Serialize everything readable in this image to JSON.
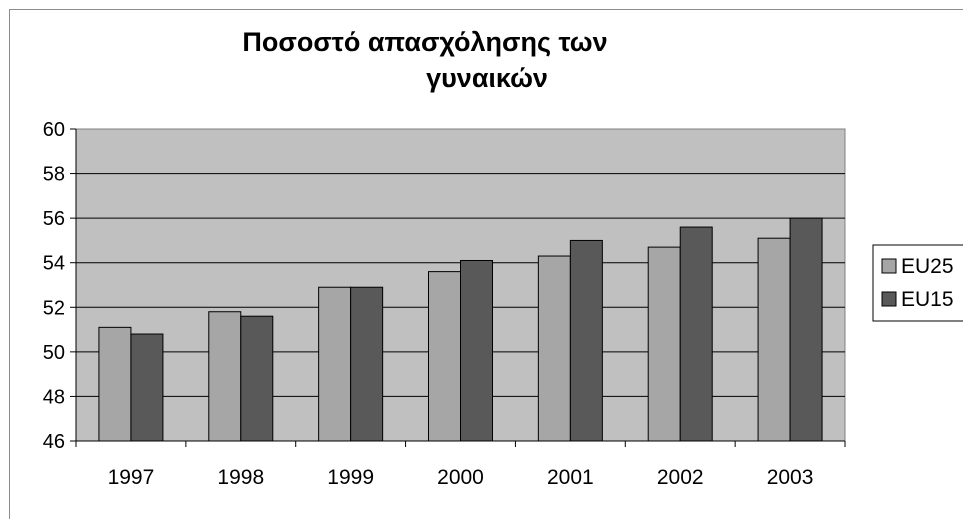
{
  "chart_data": {
    "type": "bar",
    "title_lines": [
      "Ποσοστό απασχόλησης των",
      "γυναικών"
    ],
    "categories": [
      "1997",
      "1998",
      "1999",
      "2000",
      "2001",
      "2002",
      "2003"
    ],
    "series": [
      {
        "name": "EU25",
        "color": "#a6a6a6",
        "values": [
          51.1,
          51.8,
          52.9,
          53.6,
          54.3,
          54.7,
          55.1
        ]
      },
      {
        "name": "EU15",
        "color": "#595959",
        "values": [
          50.8,
          51.6,
          52.9,
          54.1,
          55.0,
          55.6,
          56.0
        ]
      }
    ],
    "ylim": [
      46,
      60
    ],
    "yticks": [
      "46",
      "48",
      "50",
      "52",
      "54",
      "56",
      "58",
      "60"
    ],
    "plot_background": "#c0c0c0",
    "grid": true,
    "legend_position": "right"
  }
}
